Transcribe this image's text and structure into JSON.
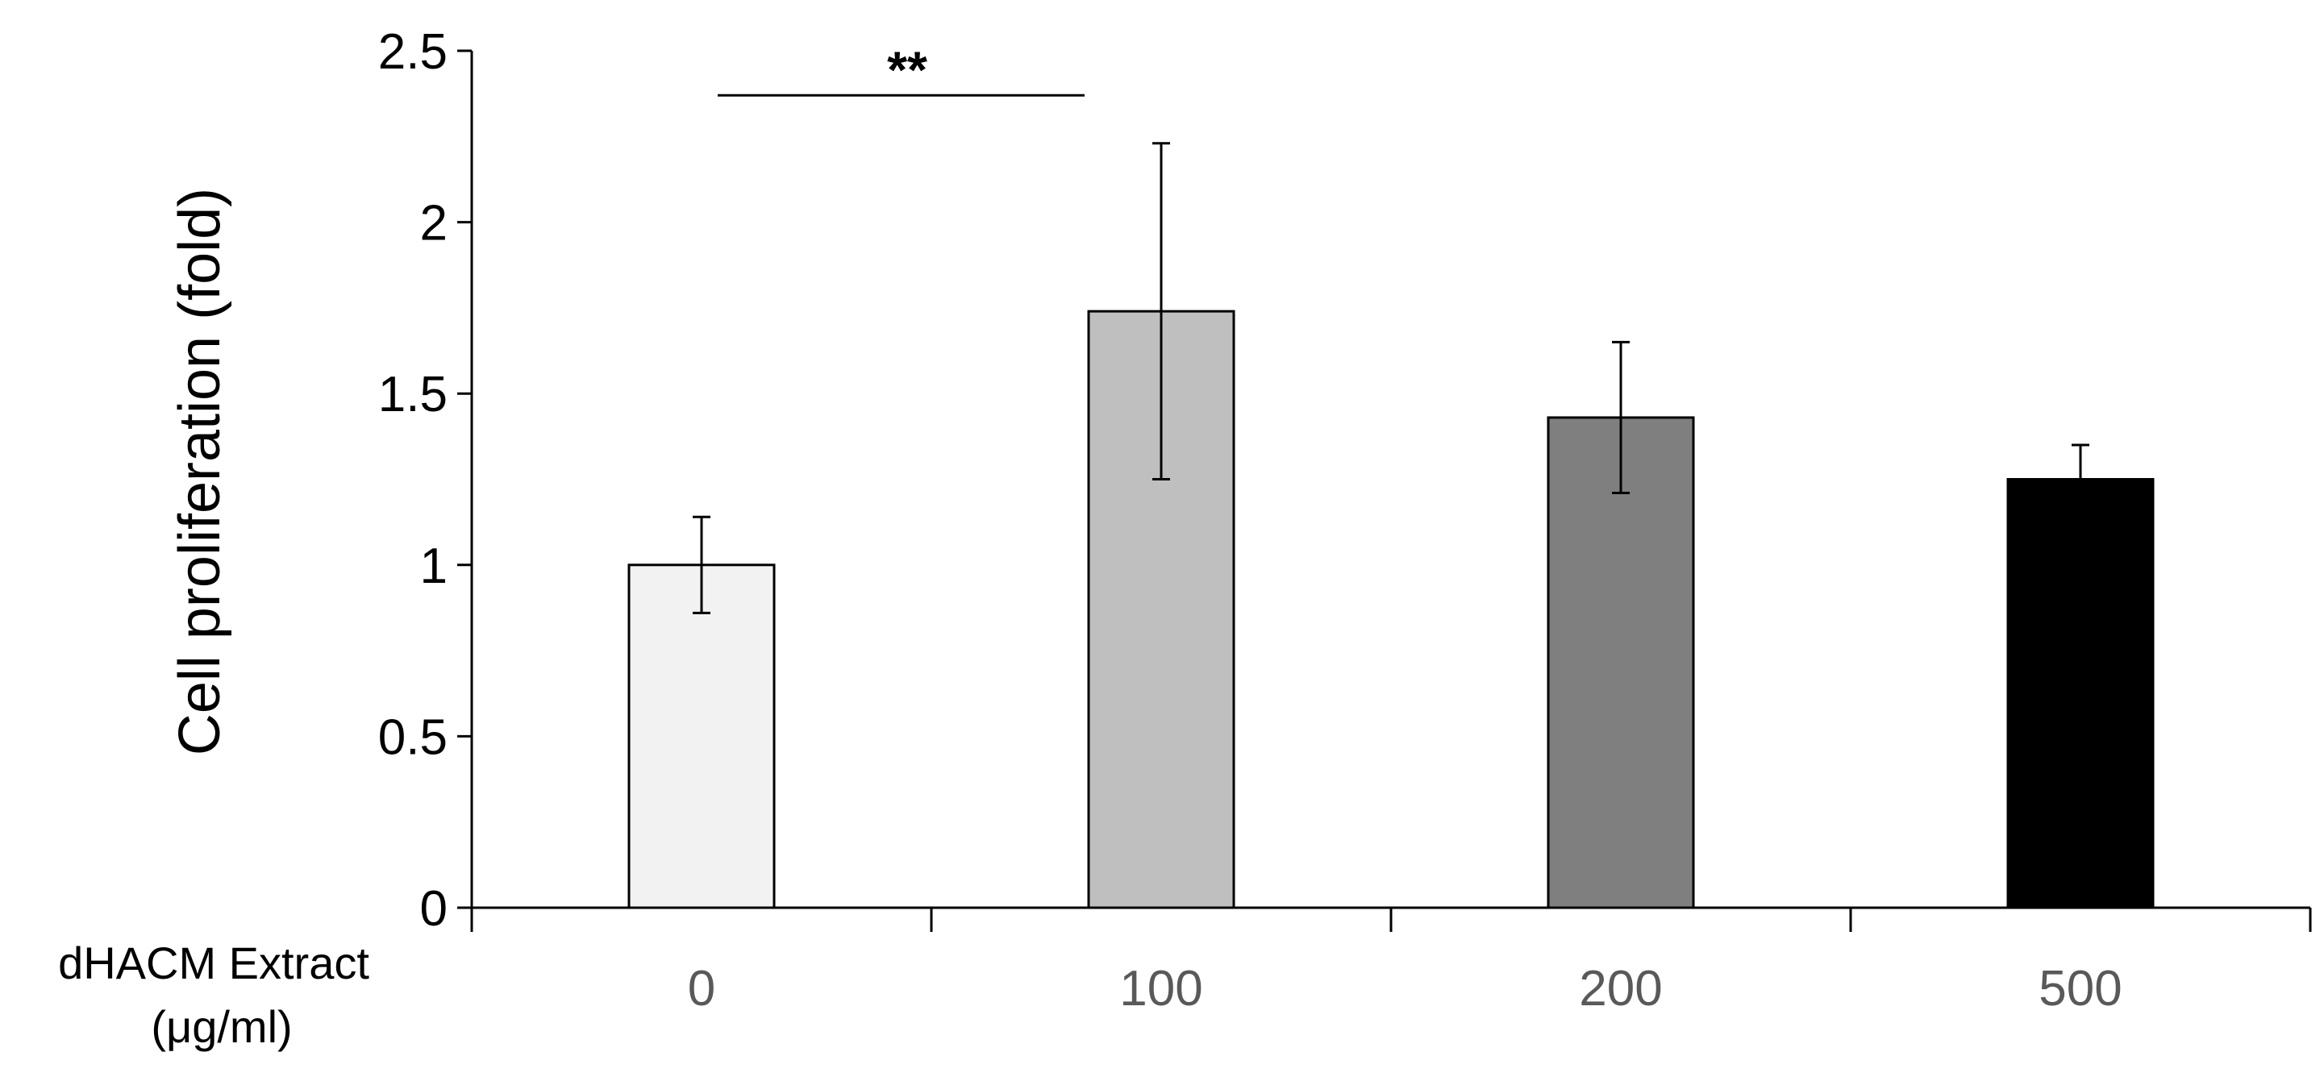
{
  "chart_data": {
    "type": "bar",
    "title": "",
    "xlabel": "dHACM Extract (μg/ml)",
    "xlabel_lines": [
      "dHACM Extract",
      "(μg/ml)"
    ],
    "ylabel": "Cell proliferation (fold)",
    "categories": [
      "0",
      "100",
      "200",
      "500"
    ],
    "values": [
      1.0,
      1.74,
      1.43,
      1.25
    ],
    "errors": [
      0.14,
      0.49,
      0.22,
      0.1
    ],
    "bar_colors": [
      "#f2f2f2",
      "#bfbfbf",
      "#7f7f7f",
      "#000000"
    ],
    "ylim": [
      0,
      2.5
    ],
    "yticks": [
      0,
      0.5,
      1,
      1.5,
      2,
      2.5
    ],
    "ytick_labels": [
      "0",
      "0.5",
      "1",
      "1.5",
      "2",
      "2.5"
    ],
    "grid": false,
    "legend": "none",
    "annotations": [
      {
        "type": "significance",
        "label": "**",
        "from_category": "0",
        "to_category": "100",
        "y": 2.37
      }
    ]
  }
}
